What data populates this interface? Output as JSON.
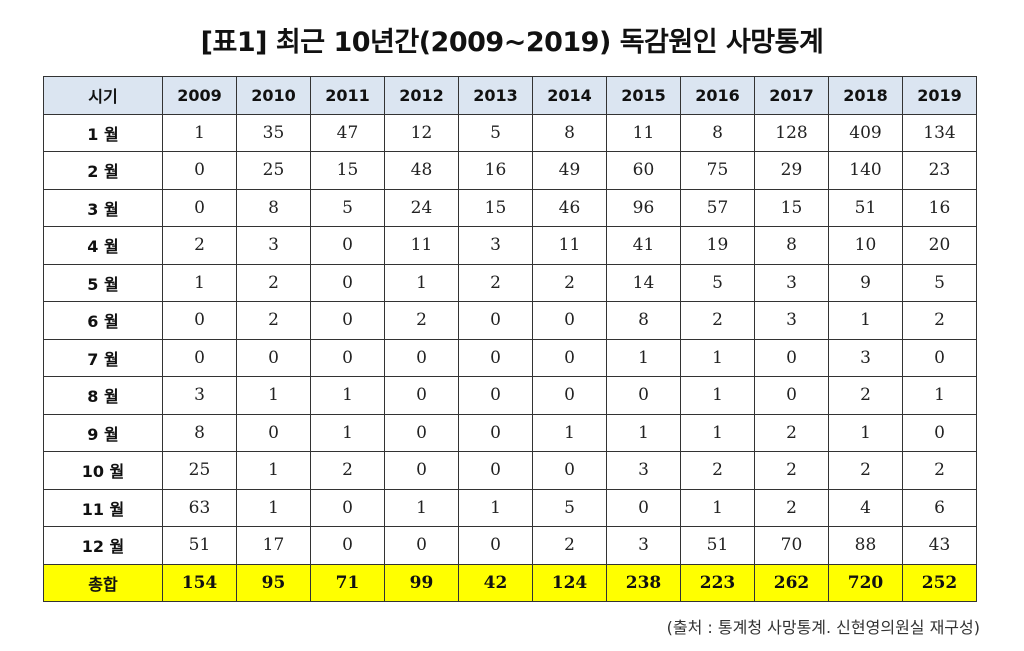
{
  "title": "[표1] 최근 10년간(2009~2019) 독감원인 사망통계",
  "table": {
    "header": [
      "시기",
      "2009",
      "2010",
      "2011",
      "2012",
      "2013",
      "2014",
      "2015",
      "2016",
      "2017",
      "2018",
      "2019"
    ],
    "rows": [
      {
        "label": "1 월",
        "values": [
          "1",
          "35",
          "47",
          "12",
          "5",
          "8",
          "11",
          "8",
          "128",
          "409",
          "134"
        ]
      },
      {
        "label": "2 월",
        "values": [
          "0",
          "25",
          "15",
          "48",
          "16",
          "49",
          "60",
          "75",
          "29",
          "140",
          "23"
        ]
      },
      {
        "label": "3 월",
        "values": [
          "0",
          "8",
          "5",
          "24",
          "15",
          "46",
          "96",
          "57",
          "15",
          "51",
          "16"
        ]
      },
      {
        "label": "4 월",
        "values": [
          "2",
          "3",
          "0",
          "11",
          "3",
          "11",
          "41",
          "19",
          "8",
          "10",
          "20"
        ]
      },
      {
        "label": "5 월",
        "values": [
          "1",
          "2",
          "0",
          "1",
          "2",
          "2",
          "14",
          "5",
          "3",
          "9",
          "5"
        ]
      },
      {
        "label": "6 월",
        "values": [
          "0",
          "2",
          "0",
          "2",
          "0",
          "0",
          "8",
          "2",
          "3",
          "1",
          "2"
        ]
      },
      {
        "label": "7 월",
        "values": [
          "0",
          "0",
          "0",
          "0",
          "0",
          "0",
          "1",
          "1",
          "0",
          "3",
          "0"
        ]
      },
      {
        "label": "8 월",
        "values": [
          "3",
          "1",
          "1",
          "0",
          "0",
          "0",
          "0",
          "1",
          "0",
          "2",
          "1"
        ]
      },
      {
        "label": "9 월",
        "values": [
          "8",
          "0",
          "1",
          "0",
          "0",
          "1",
          "1",
          "1",
          "2",
          "1",
          "0"
        ]
      },
      {
        "label": "10 월",
        "values": [
          "25",
          "1",
          "2",
          "0",
          "0",
          "0",
          "3",
          "2",
          "2",
          "2",
          "2"
        ]
      },
      {
        "label": "11 월",
        "values": [
          "63",
          "1",
          "0",
          "1",
          "1",
          "5",
          "0",
          "1",
          "2",
          "4",
          "6"
        ]
      },
      {
        "label": "12 월",
        "values": [
          "51",
          "17",
          "0",
          "0",
          "0",
          "2",
          "3",
          "51",
          "70",
          "88",
          "43"
        ]
      }
    ],
    "total": {
      "label": "총합",
      "values": [
        "154",
        "95",
        "71",
        "99",
        "42",
        "124",
        "238",
        "223",
        "262",
        "720",
        "252"
      ]
    }
  },
  "source": "(출처 : 통계청 사망통계. 신현영의원실 재구성)",
  "colors": {
    "header_bg": "#dbe5f1",
    "total_bg": "#ffff00"
  }
}
